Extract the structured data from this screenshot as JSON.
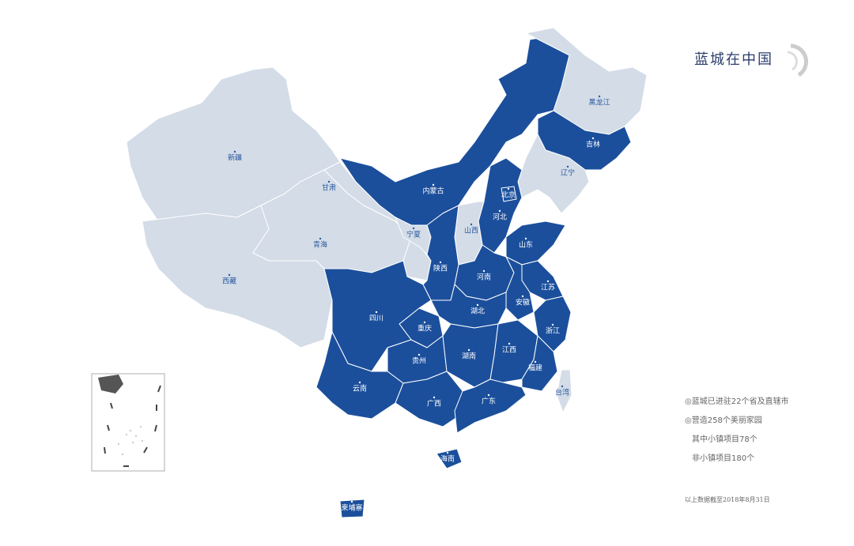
{
  "header": {
    "title": "蓝城在中国"
  },
  "map": {
    "entered_color": "#1b4f9c",
    "other_color": "#d3dce7",
    "provinces": [
      {
        "name": "新疆",
        "entered": false
      },
      {
        "name": "西藏",
        "entered": false
      },
      {
        "name": "青海",
        "entered": false
      },
      {
        "name": "甘肃",
        "entered": false
      },
      {
        "name": "内蒙古",
        "entered": true
      },
      {
        "name": "黑龙江",
        "entered": false
      },
      {
        "name": "吉林",
        "entered": true
      },
      {
        "name": "辽宁",
        "entered": false
      },
      {
        "name": "河北",
        "entered": true
      },
      {
        "name": "北京",
        "entered": true
      },
      {
        "name": "山西",
        "entered": false
      },
      {
        "name": "宁夏",
        "entered": false
      },
      {
        "name": "陕西",
        "entered": true
      },
      {
        "name": "山东",
        "entered": true
      },
      {
        "name": "河南",
        "entered": true
      },
      {
        "name": "江苏",
        "entered": true
      },
      {
        "name": "安徽",
        "entered": true
      },
      {
        "name": "浙江",
        "entered": true
      },
      {
        "name": "湖北",
        "entered": true
      },
      {
        "name": "重庆",
        "entered": true
      },
      {
        "name": "四川",
        "entered": true
      },
      {
        "name": "贵州",
        "entered": true
      },
      {
        "name": "湖南",
        "entered": true
      },
      {
        "name": "江西",
        "entered": true
      },
      {
        "name": "福建",
        "entered": true
      },
      {
        "name": "云南",
        "entered": true
      },
      {
        "name": "广西",
        "entered": true
      },
      {
        "name": "广东",
        "entered": true
      },
      {
        "name": "海南",
        "entered": true
      },
      {
        "name": "台湾",
        "entered": false
      },
      {
        "name": "柬埔寨",
        "entered": true
      }
    ]
  },
  "notes": {
    "lines": [
      "◎蓝城已进驻22个省及直辖市",
      "◎营造258个美丽家园",
      "其中小镇项目78个",
      "非小镇项目180个"
    ],
    "footnote": "以上数据截至2018年8月31日"
  }
}
